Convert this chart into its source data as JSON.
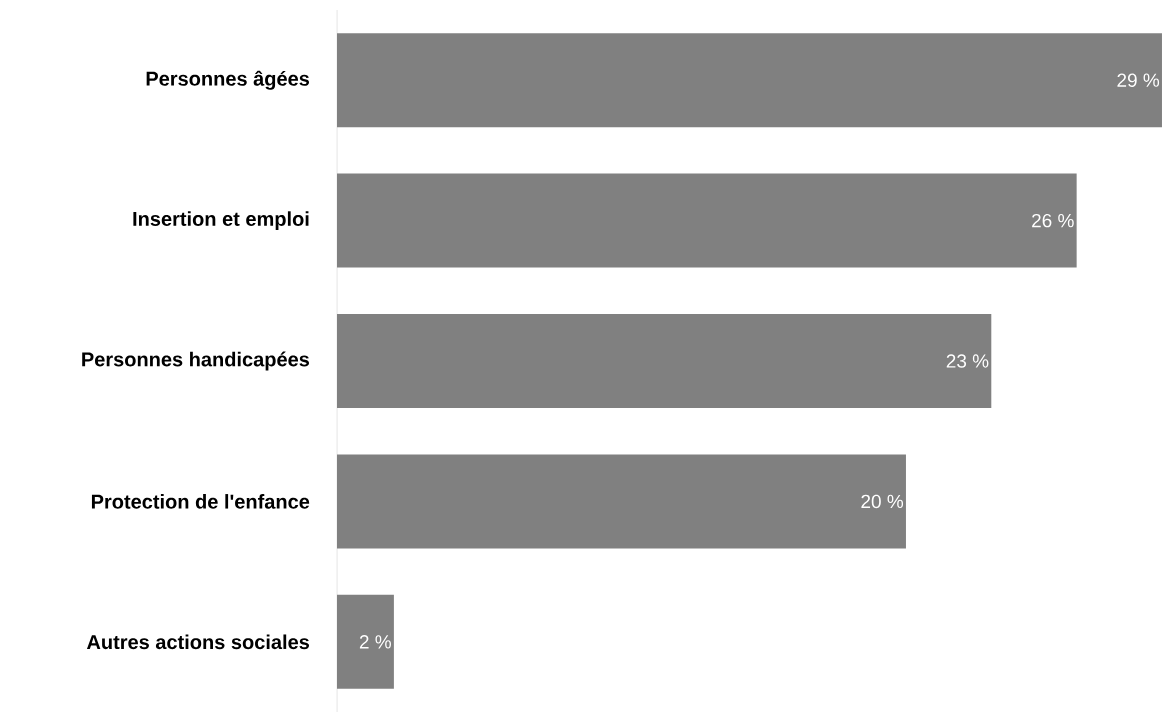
{
  "chart_data": {
    "type": "bar",
    "orientation": "horizontal",
    "categories": [
      "Personnes âgées",
      "Insertion et emploi",
      "Personnes handicapées",
      "Protection de l'enfance",
      "Autres actions sociales"
    ],
    "values": [
      29,
      26,
      23,
      20,
      2
    ],
    "value_labels": [
      "29 %",
      "26 %",
      "23 %",
      "20 %",
      "2 %"
    ],
    "color": "#808080"
  }
}
